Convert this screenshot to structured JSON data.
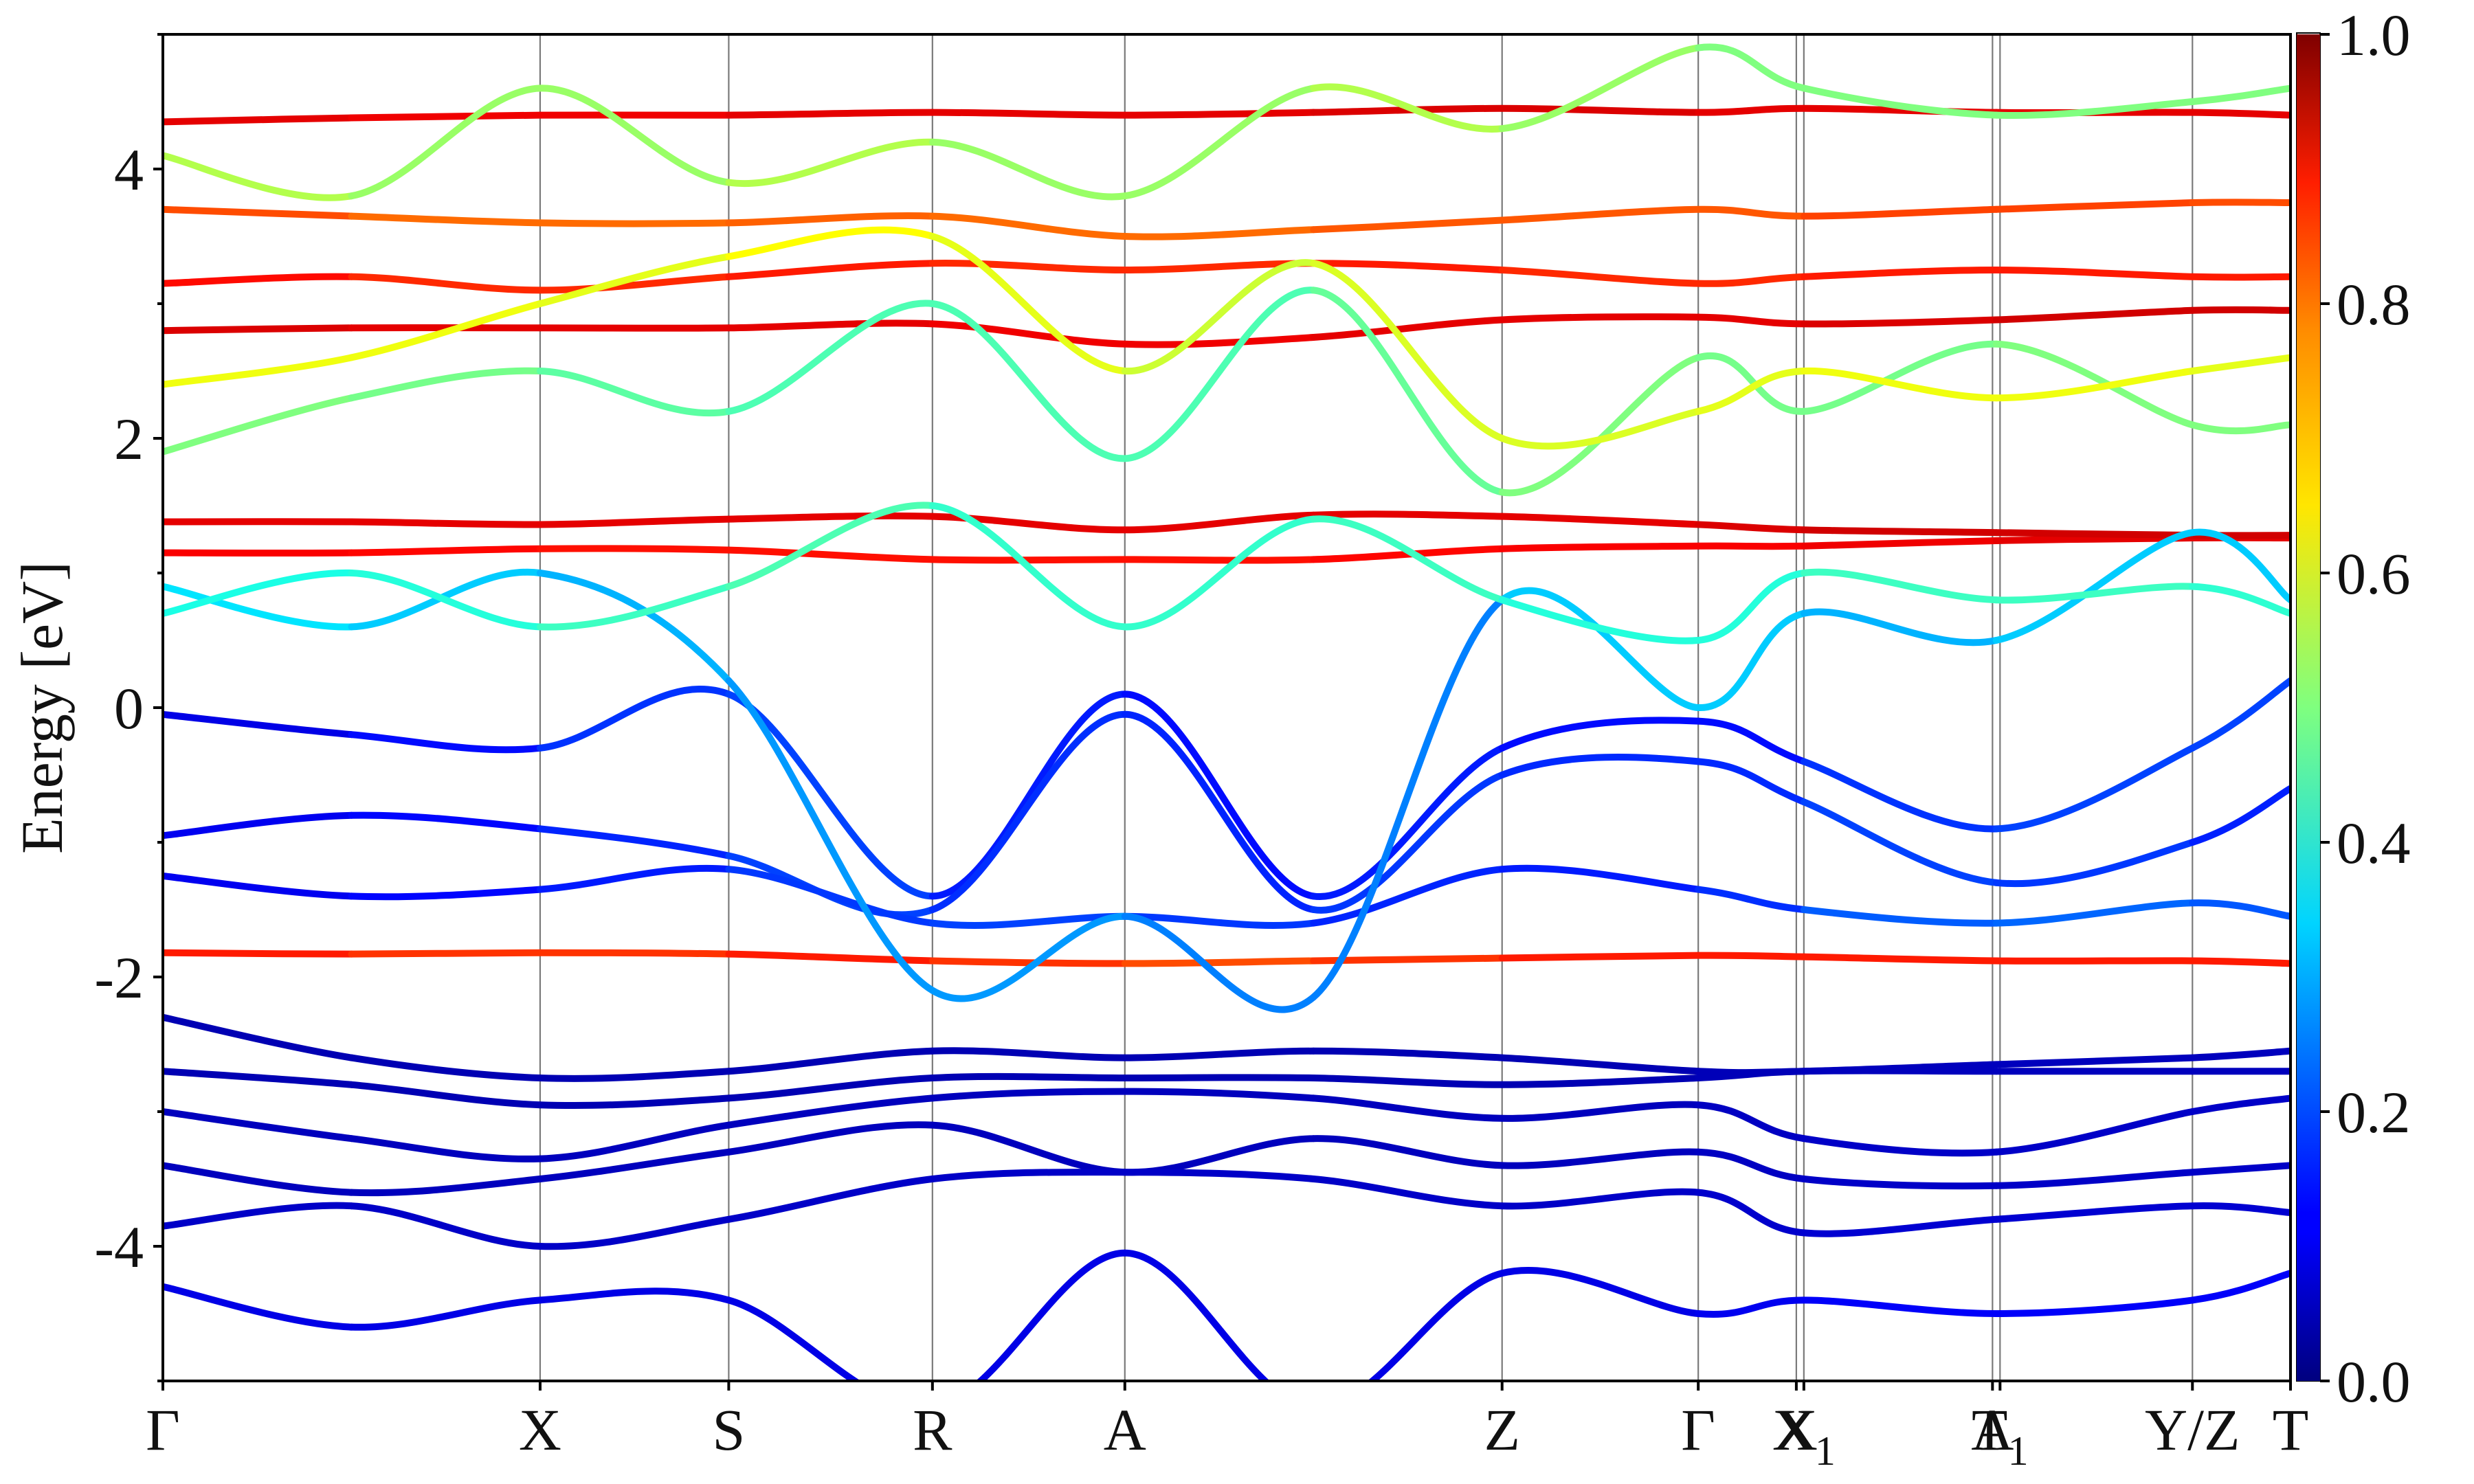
{
  "chart_data": {
    "type": "line",
    "ylabel": "Energy [eV]",
    "ylim": [
      -5,
      5
    ],
    "yticks": [
      {
        "value": 4,
        "label": "4"
      },
      {
        "value": 2,
        "label": "2"
      },
      {
        "value": 0,
        "label": "0"
      },
      {
        "value": -2,
        "label": "-2"
      },
      {
        "value": -4,
        "label": "-4"
      }
    ],
    "kpath": [
      {
        "x": 0.0,
        "label": "Γ",
        "sub": ""
      },
      {
        "x": 1.0,
        "label": "X",
        "sub": ""
      },
      {
        "x": 1.5,
        "label": "S",
        "sub": ""
      },
      {
        "x": 2.04,
        "label": "R",
        "sub": ""
      },
      {
        "x": 2.55,
        "label": "A",
        "sub": ""
      },
      {
        "x": 3.55,
        "label": "Z",
        "sub": ""
      },
      {
        "x": 4.07,
        "label": "Γ",
        "sub": ""
      },
      {
        "x": 4.33,
        "label": "X",
        "sub": ""
      },
      {
        "x": 4.35,
        "label": "X",
        "sub": "1"
      },
      {
        "x": 4.85,
        "label": "A",
        "sub": ""
      },
      {
        "x": 4.87,
        "label": "T",
        "sub": "1"
      },
      {
        "x": 5.38,
        "label": "Y/Z",
        "sub": ""
      },
      {
        "x": 5.64,
        "label": "T",
        "sub": ""
      }
    ],
    "xlim": [
      0,
      5.64
    ],
    "colorbar": {
      "colormap": "jet",
      "range": [
        0.0,
        1.0
      ],
      "ticks": [
        {
          "value": 1.0,
          "label": "1.0"
        },
        {
          "value": 0.8,
          "label": "0.8"
        },
        {
          "value": 0.6,
          "label": "0.6"
        },
        {
          "value": 0.4,
          "label": "0.4"
        },
        {
          "value": 0.2,
          "label": "0.2"
        },
        {
          "value": 0.0,
          "label": "0.0"
        }
      ]
    },
    "series": [
      {
        "x": [
          0,
          0.5,
          1.0,
          1.5,
          2.04,
          2.55,
          3.05,
          3.55,
          4.07,
          4.35,
          4.86,
          5.38,
          5.64
        ],
        "energy": [
          -1.82,
          -1.83,
          -1.82,
          -1.83,
          -1.88,
          -1.9,
          -1.88,
          -1.86,
          -1.84,
          -1.85,
          -1.88,
          -1.88,
          -1.9
        ],
        "weight": [
          0.85,
          0.85,
          0.8,
          0.85,
          0.85,
          0.8,
          0.8,
          0.85,
          0.85,
          0.85,
          0.85,
          0.85,
          0.85
        ]
      },
      {
        "x": [
          0,
          0.5,
          1.0,
          1.5,
          2.04,
          2.55,
          3.05,
          3.55,
          4.07,
          4.35,
          4.86,
          5.38,
          5.64
        ],
        "energy": [
          1.15,
          1.15,
          1.18,
          1.17,
          1.1,
          1.1,
          1.1,
          1.18,
          1.2,
          1.2,
          1.24,
          1.26,
          1.26
        ],
        "weight": [
          0.88,
          0.88,
          0.86,
          0.86,
          0.86,
          0.86,
          0.86,
          0.88,
          0.88,
          0.88,
          0.9,
          0.9,
          0.9
        ]
      },
      {
        "x": [
          0,
          0.5,
          1.0,
          1.5,
          2.04,
          2.55,
          3.05,
          3.55,
          4.07,
          4.35,
          4.86,
          5.38,
          5.64
        ],
        "energy": [
          1.38,
          1.38,
          1.36,
          1.4,
          1.42,
          1.32,
          1.43,
          1.42,
          1.36,
          1.32,
          1.3,
          1.28,
          1.28
        ],
        "weight": [
          0.9,
          0.9,
          0.9,
          0.9,
          0.9,
          0.9,
          0.9,
          0.9,
          0.9,
          0.92,
          0.92,
          0.92,
          0.92
        ]
      },
      {
        "x": [
          0,
          0.5,
          1.0,
          1.5,
          2.04,
          2.55,
          3.05,
          3.55,
          4.07,
          4.35,
          4.86,
          5.38,
          5.64
        ],
        "energy": [
          2.8,
          2.82,
          2.82,
          2.82,
          2.85,
          2.7,
          2.75,
          2.88,
          2.9,
          2.85,
          2.88,
          2.95,
          2.95
        ],
        "weight": [
          0.92,
          0.9,
          0.9,
          0.9,
          0.9,
          0.88,
          0.9,
          0.9,
          0.9,
          0.9,
          0.92,
          0.92,
          0.92
        ]
      },
      {
        "x": [
          0,
          0.5,
          1.0,
          1.5,
          2.04,
          2.55,
          3.05,
          3.55,
          4.07,
          4.35,
          4.86,
          5.38,
          5.64
        ],
        "energy": [
          3.15,
          3.2,
          3.1,
          3.2,
          3.3,
          3.25,
          3.3,
          3.25,
          3.15,
          3.2,
          3.25,
          3.2,
          3.2
        ],
        "weight": [
          0.88,
          0.85,
          0.82,
          0.85,
          0.85,
          0.82,
          0.85,
          0.85,
          0.82,
          0.85,
          0.85,
          0.85,
          0.85
        ]
      },
      {
        "x": [
          0,
          0.5,
          1.0,
          1.5,
          2.04,
          2.55,
          3.05,
          3.55,
          4.07,
          4.35,
          4.86,
          5.38,
          5.64
        ],
        "energy": [
          3.7,
          3.65,
          3.6,
          3.6,
          3.65,
          3.5,
          3.55,
          3.62,
          3.7,
          3.65,
          3.7,
          3.75,
          3.75
        ],
        "weight": [
          0.82,
          0.78,
          0.76,
          0.78,
          0.78,
          0.76,
          0.78,
          0.8,
          0.78,
          0.8,
          0.82,
          0.8,
          0.8
        ]
      },
      {
        "x": [
          0,
          0.5,
          1.0,
          1.5,
          2.04,
          2.55,
          3.05,
          3.55,
          4.07,
          4.35,
          4.86,
          5.38,
          5.64
        ],
        "energy": [
          4.35,
          4.38,
          4.4,
          4.4,
          4.42,
          4.4,
          4.42,
          4.45,
          4.42,
          4.45,
          4.42,
          4.42,
          4.4
        ],
        "weight": [
          0.9,
          0.9,
          0.88,
          0.9,
          0.9,
          0.9,
          0.9,
          0.92,
          0.9,
          0.9,
          0.9,
          0.9,
          0.9
        ]
      },
      {
        "x": [
          0,
          0.5,
          1.0,
          1.5,
          2.04,
          2.55,
          3.05,
          3.55,
          4.07,
          4.35,
          4.86,
          5.38,
          5.64
        ],
        "energy": [
          -0.05,
          -0.2,
          -0.3,
          0.1,
          -1.4,
          0.1,
          -1.4,
          -0.3,
          -0.1,
          -0.4,
          -0.9,
          -0.3,
          0.2
        ],
        "weight": [
          0.08,
          0.12,
          0.15,
          0.2,
          0.18,
          0.12,
          0.15,
          0.15,
          0.12,
          0.15,
          0.2,
          0.18,
          0.2
        ]
      },
      {
        "x": [
          0,
          0.5,
          1.0,
          1.5,
          2.04,
          2.55,
          3.05,
          3.55,
          4.07,
          4.35,
          4.86,
          5.38,
          5.64
        ],
        "energy": [
          -0.95,
          -0.8,
          -0.9,
          -1.1,
          -1.5,
          -0.05,
          -1.5,
          -0.5,
          -0.4,
          -0.7,
          -1.3,
          -1.0,
          -0.6
        ],
        "weight": [
          0.1,
          0.12,
          0.14,
          0.18,
          0.2,
          0.14,
          0.18,
          0.18,
          0.15,
          0.18,
          0.2,
          0.16,
          0.15
        ]
      },
      {
        "x": [
          0,
          0.5,
          1.0,
          1.5,
          2.04,
          2.55,
          3.05,
          3.55,
          4.07,
          4.35,
          4.86,
          5.38,
          5.64
        ],
        "energy": [
          -1.25,
          -1.4,
          -1.35,
          -1.2,
          -1.6,
          -1.55,
          -1.6,
          -1.2,
          -1.35,
          -1.5,
          -1.6,
          -1.45,
          -1.55
        ],
        "weight": [
          0.1,
          0.12,
          0.14,
          0.16,
          0.2,
          0.18,
          0.18,
          0.14,
          0.16,
          0.18,
          0.25,
          0.2,
          0.22
        ]
      },
      {
        "x": [
          0,
          0.5,
          1.0,
          1.5,
          2.04,
          2.55,
          3.05,
          3.55,
          4.07,
          4.35,
          4.86,
          5.38,
          5.64
        ],
        "energy": [
          0.9,
          0.6,
          1.0,
          0.2,
          -2.1,
          -1.55,
          -2.15,
          0.8,
          0.0,
          0.7,
          0.5,
          1.3,
          0.8
        ],
        "weight": [
          0.35,
          0.35,
          0.3,
          0.3,
          0.25,
          0.3,
          0.2,
          0.3,
          0.35,
          0.3,
          0.3,
          0.35,
          0.3
        ]
      },
      {
        "x": [
          0,
          0.5,
          1.0,
          1.5,
          2.04,
          2.55,
          3.05,
          3.55,
          4.07,
          4.35,
          4.86,
          5.38,
          5.64
        ],
        "energy": [
          -2.3,
          -2.6,
          -2.75,
          -2.7,
          -2.55,
          -2.6,
          -2.55,
          -2.6,
          -2.7,
          -2.7,
          -2.65,
          -2.6,
          -2.55
        ],
        "weight": [
          0.05,
          0.05,
          0.05,
          0.05,
          0.05,
          0.05,
          0.05,
          0.05,
          0.05,
          0.06,
          0.06,
          0.06,
          0.06
        ]
      },
      {
        "x": [
          0,
          0.5,
          1.0,
          1.5,
          2.04,
          2.55,
          3.05,
          3.55,
          4.07,
          4.35,
          4.86,
          5.38,
          5.64
        ],
        "energy": [
          -2.7,
          -2.8,
          -2.95,
          -2.9,
          -2.75,
          -2.75,
          -2.75,
          -2.8,
          -2.75,
          -2.7,
          -2.7,
          -2.7,
          -2.7
        ],
        "weight": [
          0.05,
          0.05,
          0.05,
          0.05,
          0.05,
          0.05,
          0.05,
          0.05,
          0.05,
          0.06,
          0.06,
          0.06,
          0.06
        ]
      },
      {
        "x": [
          0,
          0.5,
          1.0,
          1.5,
          2.04,
          2.55,
          3.05,
          3.55,
          4.07,
          4.35,
          4.86,
          5.38,
          5.64
        ],
        "energy": [
          -3.0,
          -3.2,
          -3.35,
          -3.1,
          -2.9,
          -2.85,
          -2.9,
          -3.05,
          -2.95,
          -3.2,
          -3.3,
          -3.0,
          -2.9
        ],
        "weight": [
          0.06,
          0.06,
          0.06,
          0.06,
          0.06,
          0.06,
          0.06,
          0.06,
          0.06,
          0.07,
          0.07,
          0.07,
          0.07
        ]
      },
      {
        "x": [
          0,
          0.5,
          1.0,
          1.5,
          2.04,
          2.55,
          3.05,
          3.55,
          4.07,
          4.35,
          4.86,
          5.38,
          5.64
        ],
        "energy": [
          -3.4,
          -3.6,
          -3.5,
          -3.3,
          -3.1,
          -3.45,
          -3.2,
          -3.4,
          -3.3,
          -3.5,
          -3.55,
          -3.45,
          -3.4
        ],
        "weight": [
          0.06,
          0.06,
          0.06,
          0.06,
          0.06,
          0.06,
          0.06,
          0.06,
          0.06,
          0.07,
          0.07,
          0.07,
          0.07
        ]
      },
      {
        "x": [
          0,
          0.5,
          1.0,
          1.5,
          2.04,
          2.55,
          3.05,
          3.55,
          4.07,
          4.35,
          4.86,
          5.38,
          5.64
        ],
        "energy": [
          -3.85,
          -3.7,
          -4.0,
          -3.8,
          -3.5,
          -3.45,
          -3.5,
          -3.7,
          -3.6,
          -3.9,
          -3.8,
          -3.7,
          -3.75
        ],
        "weight": [
          0.07,
          0.07,
          0.07,
          0.07,
          0.07,
          0.07,
          0.07,
          0.07,
          0.07,
          0.08,
          0.08,
          0.08,
          0.08
        ]
      },
      {
        "x": [
          0,
          0.5,
          1.0,
          1.5,
          2.04,
          2.55,
          3.05,
          3.55,
          4.07,
          4.35,
          4.86,
          5.38,
          5.64
        ],
        "energy": [
          -4.3,
          -4.6,
          -4.4,
          -4.4,
          -5.2,
          -4.05,
          -5.2,
          -4.2,
          -4.5,
          -4.4,
          -4.5,
          -4.4,
          -4.2
        ],
        "weight": [
          0.1,
          0.1,
          0.1,
          0.1,
          0.1,
          0.1,
          0.1,
          0.1,
          0.1,
          0.12,
          0.12,
          0.12,
          0.12
        ]
      },
      {
        "x": [
          0,
          0.5,
          1.0,
          1.5,
          2.04,
          2.55,
          3.05,
          3.55,
          4.07,
          4.35,
          4.86,
          5.38,
          5.64
        ],
        "energy": [
          1.9,
          2.3,
          2.5,
          2.2,
          3.0,
          1.85,
          3.1,
          1.6,
          2.6,
          2.2,
          2.7,
          2.1,
          2.1
        ],
        "weight": [
          0.5,
          0.5,
          0.48,
          0.45,
          0.45,
          0.45,
          0.45,
          0.5,
          0.5,
          0.48,
          0.5,
          0.5,
          0.5
        ]
      },
      {
        "x": [
          0,
          0.5,
          1.0,
          1.5,
          2.04,
          2.55,
          3.05,
          3.55,
          4.07,
          4.35,
          4.86,
          5.38,
          5.64
        ],
        "energy": [
          2.4,
          2.6,
          3.0,
          3.35,
          3.5,
          2.5,
          3.3,
          2.0,
          2.2,
          2.5,
          2.3,
          2.5,
          2.6
        ],
        "weight": [
          0.6,
          0.62,
          0.6,
          0.6,
          0.65,
          0.55,
          0.6,
          0.58,
          0.6,
          0.6,
          0.62,
          0.6,
          0.6
        ]
      },
      {
        "x": [
          0,
          0.5,
          1.0,
          1.5,
          2.04,
          2.55,
          3.05,
          3.55,
          4.07,
          4.35,
          4.86,
          5.38,
          5.64
        ],
        "energy": [
          4.1,
          3.8,
          4.6,
          3.9,
          4.2,
          3.8,
          4.6,
          4.3,
          4.9,
          4.6,
          4.4,
          4.5,
          4.6
        ],
        "weight": [
          0.55,
          0.55,
          0.5,
          0.55,
          0.55,
          0.5,
          0.55,
          0.55,
          0.5,
          0.5,
          0.5,
          0.5,
          0.5
        ]
      },
      {
        "x": [
          0,
          0.5,
          1.0,
          1.5,
          2.04,
          2.55,
          3.05,
          3.55,
          4.07,
          4.35,
          4.86,
          5.38,
          5.64
        ],
        "energy": [
          0.7,
          1.0,
          0.6,
          0.9,
          1.5,
          0.6,
          1.4,
          0.8,
          0.5,
          1.0,
          0.8,
          0.9,
          0.7
        ],
        "weight": [
          0.4,
          0.4,
          0.42,
          0.45,
          0.45,
          0.4,
          0.45,
          0.42,
          0.4,
          0.42,
          0.45,
          0.42,
          0.42
        ]
      }
    ]
  }
}
